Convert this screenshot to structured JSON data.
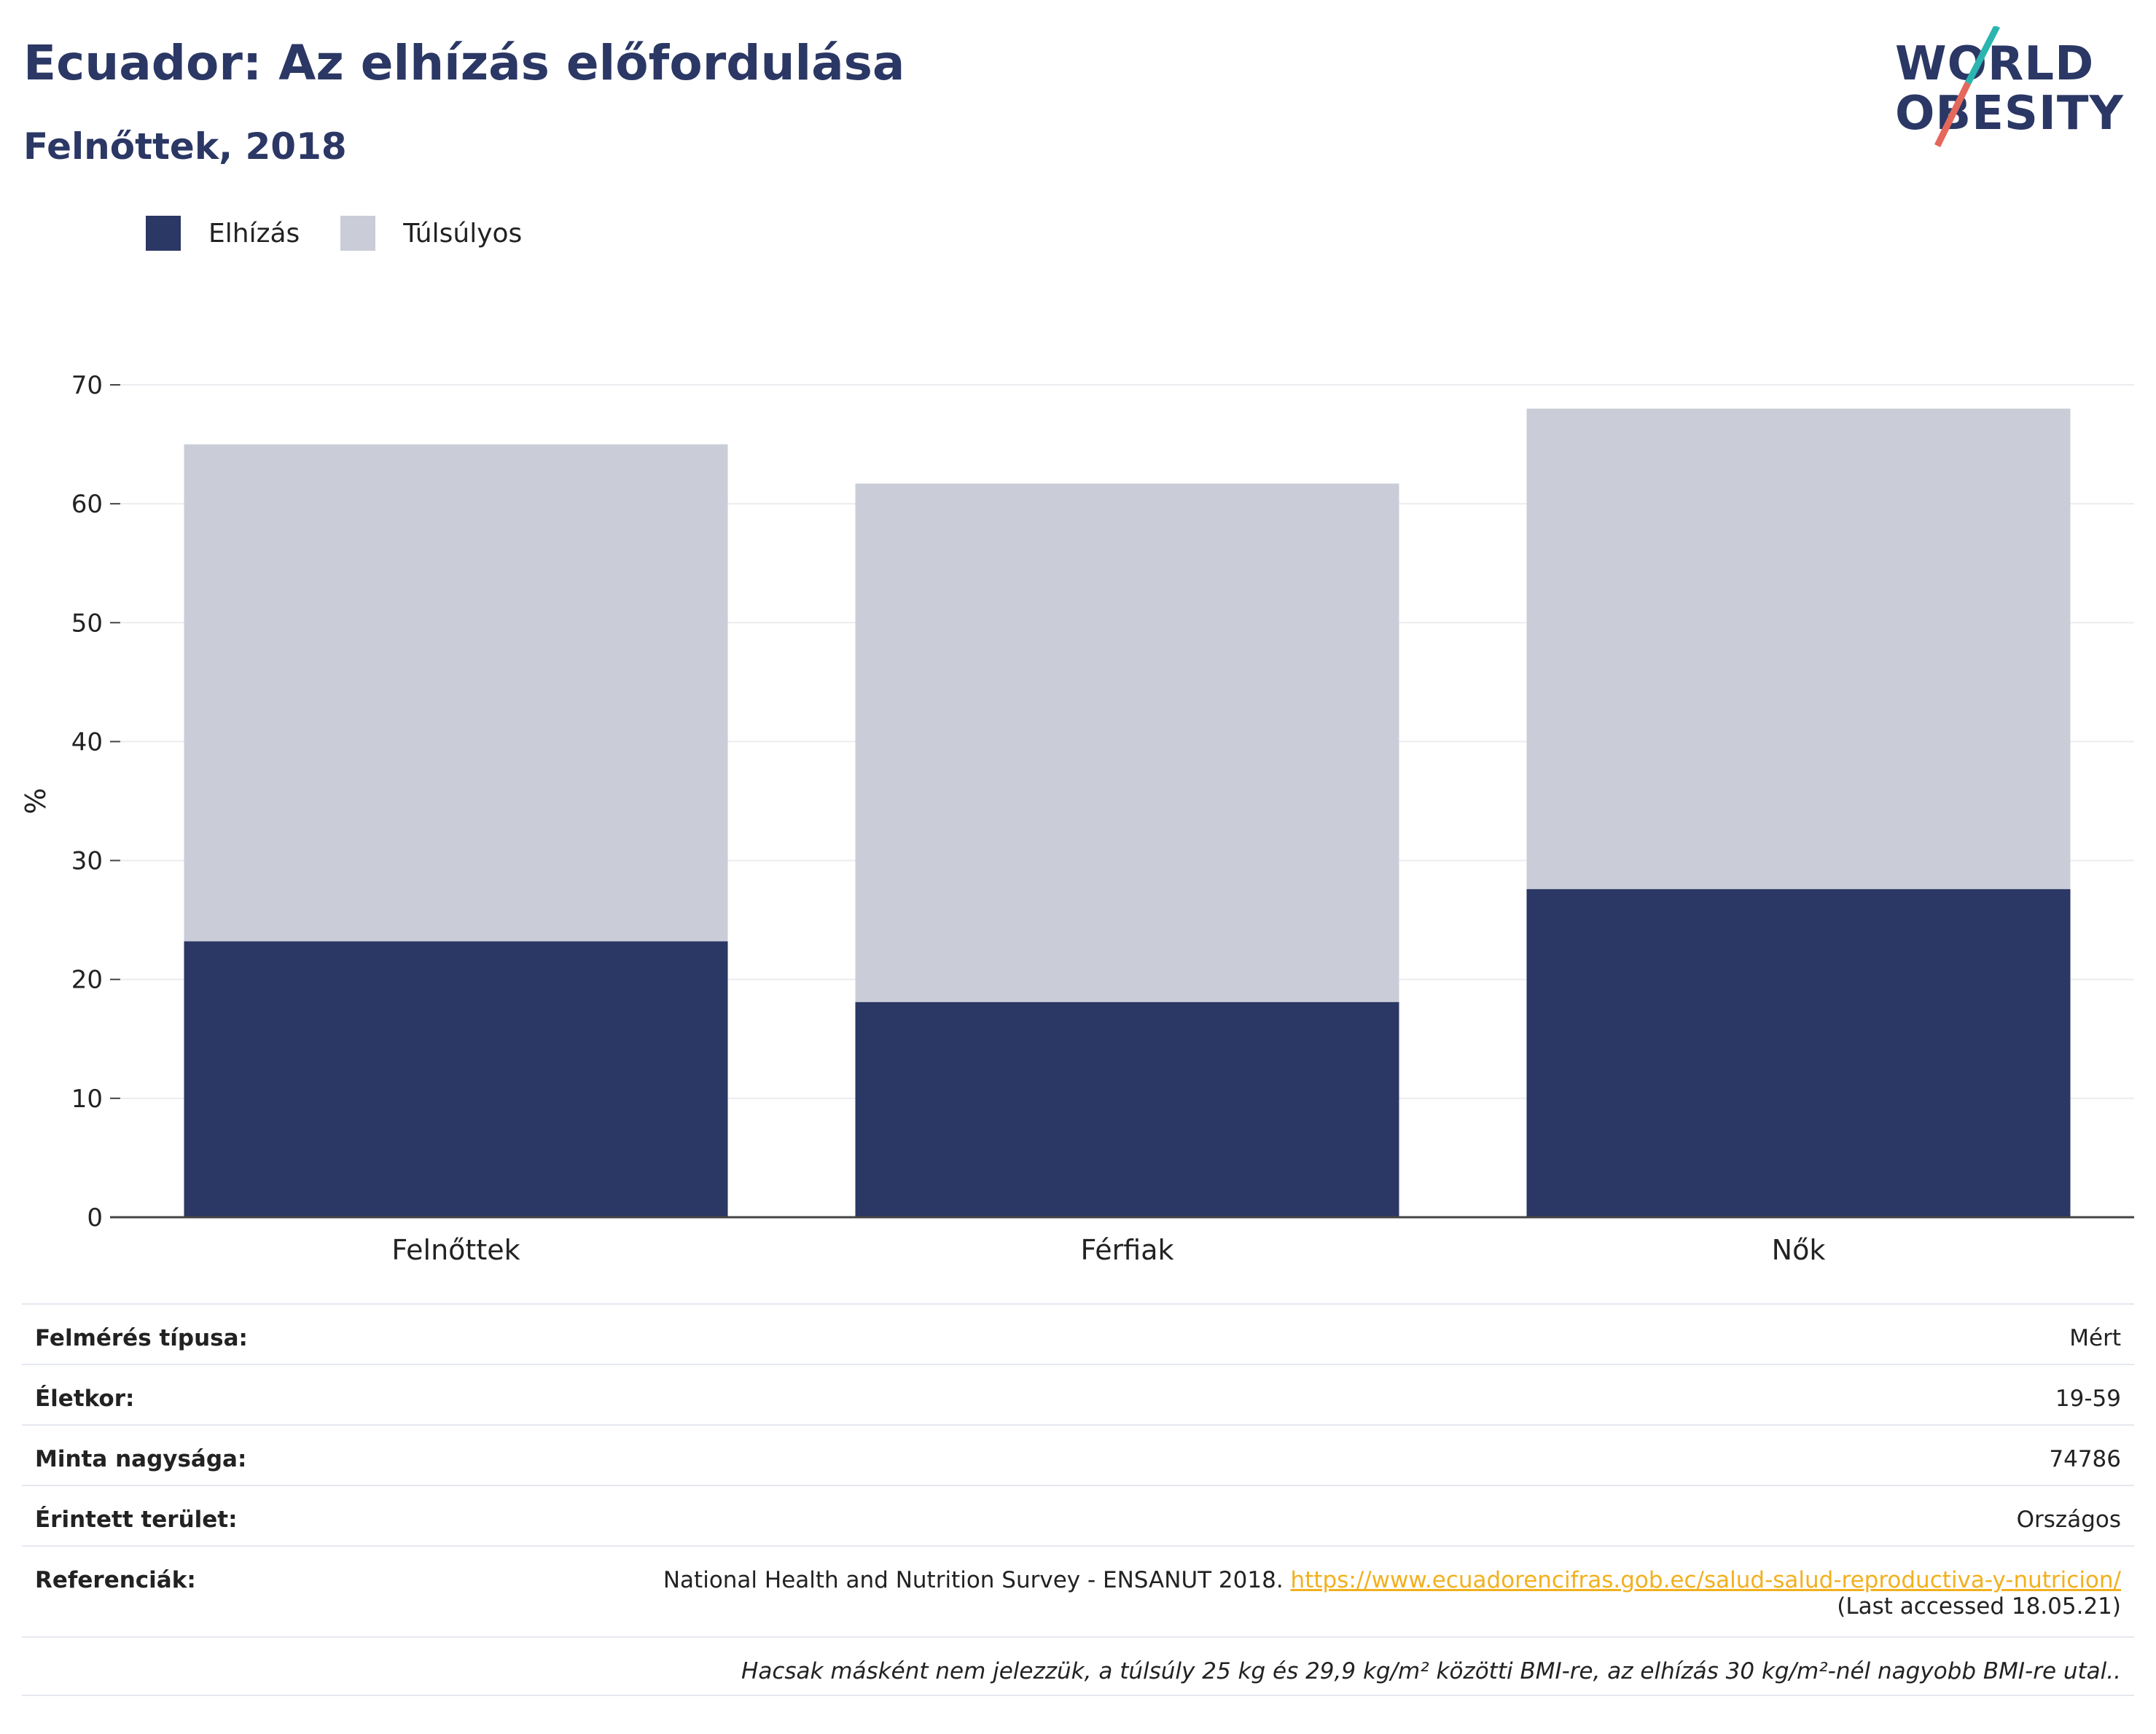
{
  "header": {
    "title": "Ecuador: Az elhízás előfordulása",
    "subtitle": "Felnőttek, 2018"
  },
  "logo": {
    "line1": "WORLD",
    "line2": "OBESITY"
  },
  "colors": {
    "obesity": "#2b3764",
    "overweight": "#cacdd8",
    "accent_teal": "#2bb5b0",
    "accent_red": "#e4685c",
    "link": "#f2b01e"
  },
  "chart_data": {
    "type": "bar",
    "stacked": true,
    "categories": [
      "Felnőttek",
      "Férfiak",
      "Nők"
    ],
    "series": [
      {
        "name": "Elhízás",
        "values": [
          23.2,
          18.1,
          27.6
        ]
      },
      {
        "name": "Túlsúlyos",
        "values": [
          41.8,
          43.6,
          40.4
        ]
      }
    ],
    "ylabel": "%",
    "ylim": [
      0,
      70
    ],
    "yticks": [
      0,
      10,
      20,
      30,
      40,
      50,
      60,
      70
    ],
    "grid": true,
    "legend": "top-left"
  },
  "info": {
    "survey_type_label": "Felmérés típusa:",
    "survey_type_value": "Mért",
    "age_label": "Életkor:",
    "age_value": "19-59",
    "sample_label": "Minta nagysága:",
    "sample_value": "74786",
    "area_label": "Érintett terület:",
    "area_value": "Országos",
    "ref_label": "Referenciák:",
    "ref_text": "National Health and Nutrition Survey - ENSANUT 2018.",
    "ref_link": "https://www.ecuadorencifras.gob.ec/salud-salud-reproductiva-y-nutricion/",
    "ref_accessed": "(Last accessed 18.05.21)",
    "footnote": "Hacsak másként nem jelezzük, a túlsúly 25 kg és 29,9 kg/m² közötti BMI-re, az elhízás 30 kg/m²-nél nagyobb BMI-re utal.."
  }
}
